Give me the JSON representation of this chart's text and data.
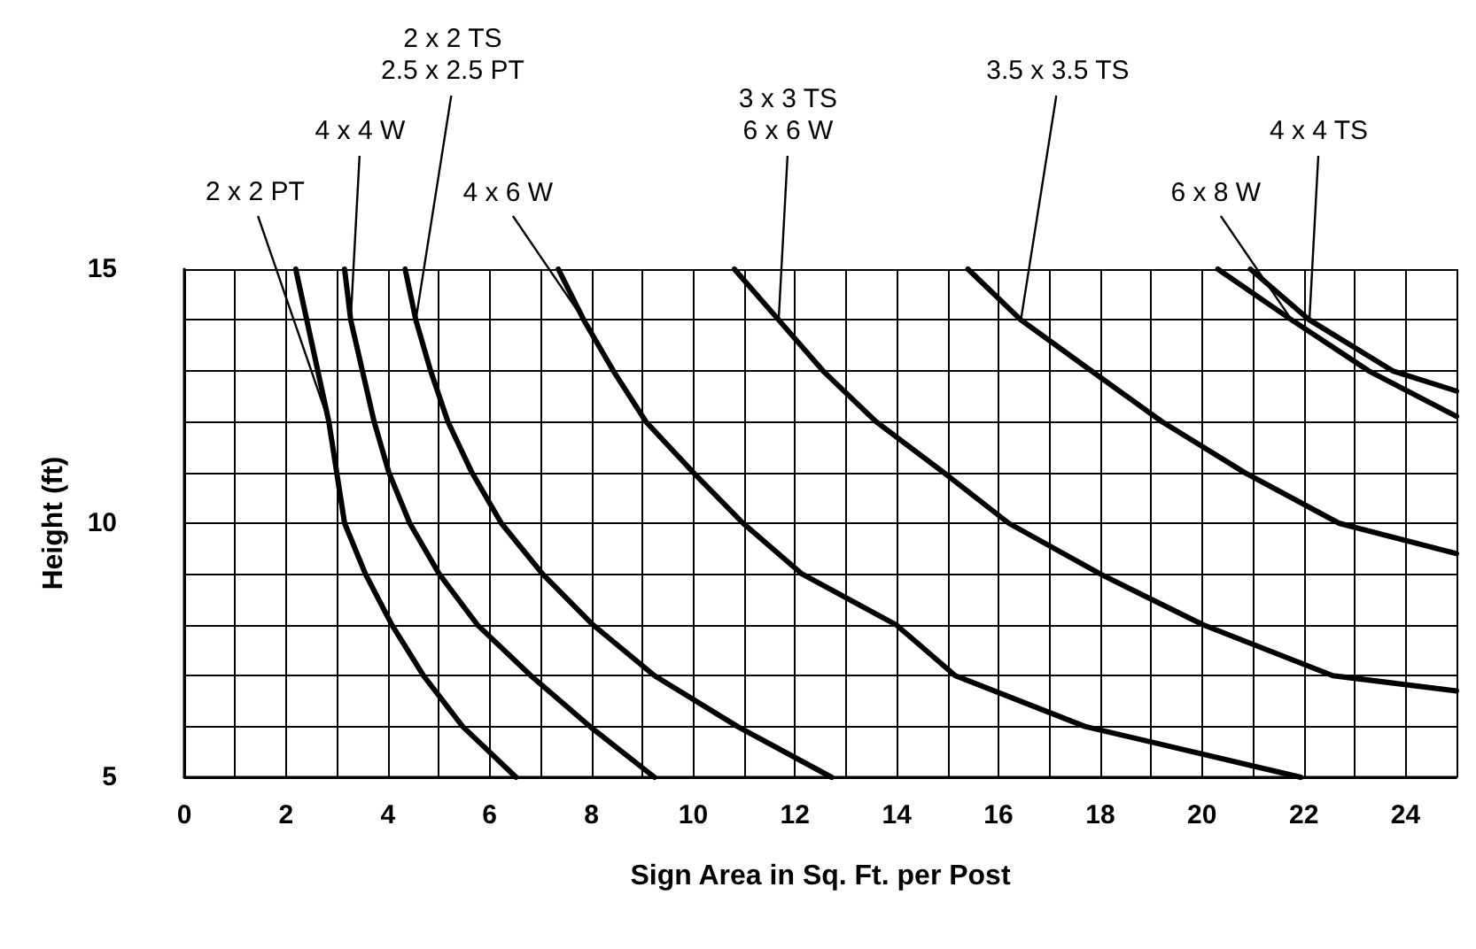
{
  "chart_data": {
    "type": "line",
    "xlabel": "Sign Area in Sq. Ft. per Post",
    "ylabel": "Height (ft)",
    "xlim": [
      0,
      25
    ],
    "ylim": [
      5,
      15
    ],
    "xticks": [
      0,
      {
        "value": 1,
        "label": null
      },
      2,
      {
        "value": 3,
        "label": null
      },
      4,
      {
        "value": 5,
        "label": null
      },
      6,
      {
        "value": 7,
        "label": null
      },
      8,
      {
        "value": 9,
        "label": null
      },
      10,
      {
        "value": 11,
        "label": null
      },
      12,
      {
        "value": 13,
        "label": null
      },
      14,
      {
        "value": 15,
        "label": null
      },
      16,
      {
        "value": 17,
        "label": null
      },
      18,
      {
        "value": 19,
        "label": null
      },
      20,
      {
        "value": 21,
        "label": null
      },
      22,
      {
        "value": 23,
        "label": null
      },
      24,
      {
        "value": 25,
        "label": null
      }
    ],
    "yticks": [
      5,
      {
        "value": 6,
        "label": null
      },
      {
        "value": 7,
        "label": null
      },
      {
        "value": 8,
        "label": null
      },
      {
        "value": 9,
        "label": null
      },
      10,
      {
        "value": 11,
        "label": null
      },
      {
        "value": 12,
        "label": null
      },
      {
        "value": 13,
        "label": null
      },
      {
        "value": 14,
        "label": null
      },
      15
    ],
    "grid": true,
    "legend": false,
    "marker": "none",
    "line_style": "solid",
    "series": [
      {
        "name": "2 x 2 PT",
        "color": "#000000",
        "x": [
          2.19,
          2.84,
          3.15,
          3.56,
          4.08,
          4.7,
          5.47,
          6.52
        ],
        "values": [
          15,
          12,
          10,
          9,
          8,
          7,
          6,
          5
        ]
      },
      {
        "name": "4 x 4 W",
        "color": "#000000",
        "x": [
          3.15,
          3.27,
          3.5,
          3.73,
          4.02,
          4.43,
          5.01,
          5.76,
          6.81,
          7.97,
          9.24
        ],
        "values": [
          15,
          14,
          13,
          12,
          11,
          10,
          9,
          8,
          7,
          6,
          5
        ]
      },
      {
        "name": "2 x 2 TS\n2.5 x 2.5 PT",
        "color": "#000000",
        "x": [
          4.34,
          4.55,
          4.84,
          5.18,
          5.65,
          6.23,
          7.04,
          8.03,
          9.24,
          10.87,
          12.72
        ],
        "values": [
          15,
          14,
          13,
          12,
          11,
          10,
          9,
          8,
          7,
          6,
          5
        ]
      },
      {
        "name": "4 x 6 W",
        "color": "#000000",
        "x": [
          7.35,
          7.85,
          8.43,
          9.07,
          10.0,
          10.98,
          12.14,
          13.99,
          15.15,
          17.7,
          21.94
        ],
        "values": [
          15,
          14,
          13,
          12,
          11,
          10,
          9,
          8,
          7,
          6,
          5
        ]
      },
      {
        "name": "3 x 3 TS\n6 x 6 W",
        "color": "#000000",
        "x": [
          10.81,
          11.68,
          12.55,
          13.59,
          14.92,
          16.2,
          18.0,
          20.02,
          22.57,
          25.0
        ],
        "values": [
          15,
          14,
          13,
          12,
          11,
          10,
          9,
          8,
          7,
          6.7
        ]
      },
      {
        "name": "3.5 x 3.5 TS",
        "color": "#000000",
        "x": [
          15.4,
          16.44,
          17.82,
          19.21,
          20.83,
          22.69,
          25.0
        ],
        "values": [
          15,
          14,
          13,
          12,
          11,
          10,
          9.4
        ]
      },
      {
        "name": "6 x 8 W",
        "color": "#000000",
        "x": [
          20.31,
          21.76,
          23.27,
          25.0
        ],
        "values": [
          15,
          14,
          13,
          12.1
        ]
      },
      {
        "name": "4 x 4 TS",
        "color": "#000000",
        "x": [
          20.95,
          22.11,
          23.74,
          25.0
        ],
        "values": [
          15,
          14,
          13,
          12.6
        ]
      }
    ]
  }
}
